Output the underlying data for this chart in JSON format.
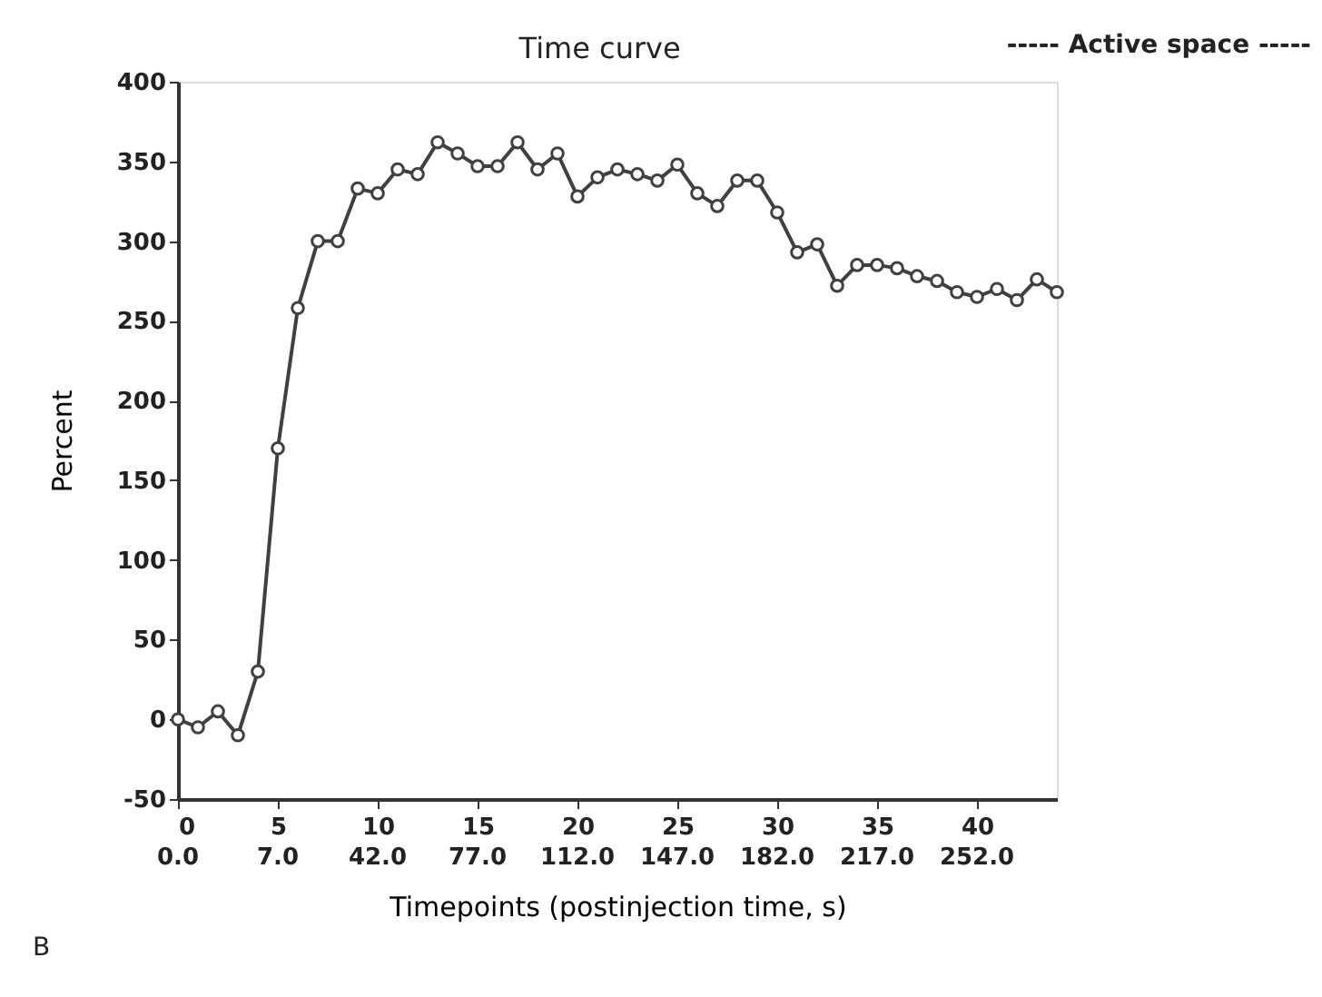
{
  "chart_data": {
    "type": "line",
    "title": "Time curve",
    "xlabel": "Timepoints (postinjection time, s)",
    "ylabel": "Percent",
    "annotations": [
      "----- Active space -----",
      "B",
      "0.0",
      "7.0",
      "42.0",
      "77.0",
      "112.0",
      "147.0",
      "182.0",
      "217.0",
      "252.0"
    ],
    "x": [
      0,
      1,
      2,
      3,
      4,
      5,
      6,
      7,
      8,
      9,
      10,
      11,
      12,
      13,
      14,
      15,
      16,
      17,
      18,
      19,
      20,
      21,
      22,
      23,
      24,
      25,
      26,
      27,
      28,
      29,
      30,
      31,
      32,
      33,
      34,
      35,
      36,
      37,
      38,
      39,
      40,
      41,
      42,
      43,
      44
    ],
    "series": [
      {
        "color": "#404040",
        "values": [
          0,
          -5,
          5,
          -10,
          30,
          170,
          258,
          300,
          300,
          333,
          330,
          345,
          342,
          362,
          355,
          347,
          347,
          362,
          345,
          355,
          328,
          340,
          345,
          342,
          338,
          348,
          330,
          322,
          338,
          338,
          318,
          293,
          298,
          272,
          285,
          285,
          283,
          278,
          275,
          268,
          265,
          270,
          263,
          276,
          268
        ]
      }
    ],
    "xlim": [
      0,
      44
    ],
    "xticks": [
      0,
      5,
      10,
      15,
      20,
      25,
      30,
      35,
      40
    ],
    "ylim": [
      -50,
      400
    ],
    "yticks": [
      -50,
      0,
      50,
      100,
      150,
      200,
      250,
      300,
      350,
      400
    ],
    "grid": false,
    "marker": "circle",
    "line_style": "solid"
  }
}
